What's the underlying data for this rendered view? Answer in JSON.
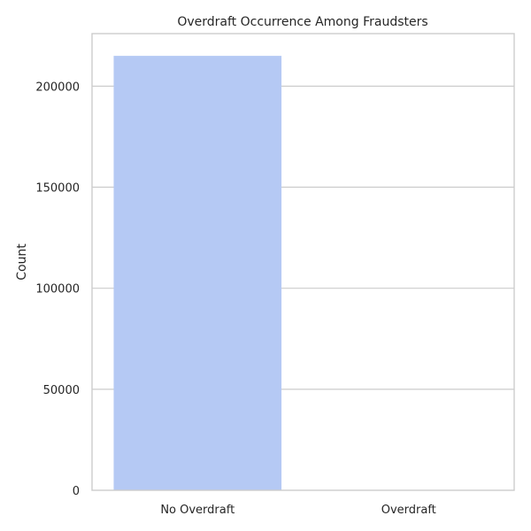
{
  "chart_data": {
    "type": "bar",
    "title": "Overdraft Occurrence Among Fraudsters",
    "xlabel": "",
    "ylabel": "Count",
    "categories": [
      "No Overdraft",
      "Overdraft"
    ],
    "values": [
      215000,
      0
    ],
    "ylim": [
      0,
      226000
    ],
    "yticks": [
      0,
      50000,
      100000,
      150000,
      200000
    ],
    "grid": true,
    "bar_color": "#b5c9f4",
    "frame_color": "#cccccc",
    "background": "#ffffff"
  }
}
